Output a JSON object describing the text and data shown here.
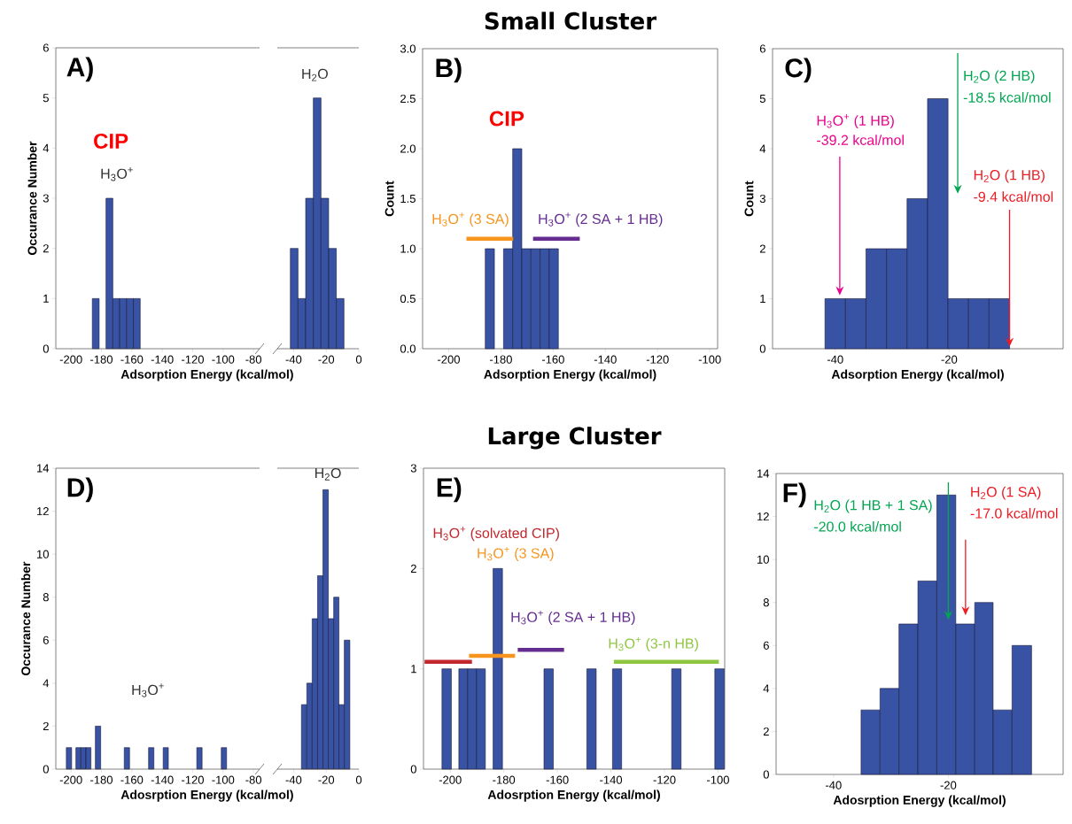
{
  "chart_data": [
    {
      "type": "histogram",
      "ylabel": "Occurance Number",
      "xlabel": "Adsorption Energy (kcal/mol)",
      "color": "#3953a4",
      "bins": [
        -186,
        -181.5,
        -177,
        -172.5,
        -168,
        -163.5,
        -159,
        -154.5
      ],
      "values": [
        1,
        0,
        3,
        1,
        1,
        1,
        1
      ],
      "xlim": [
        -210,
        -76
      ],
      "ylim": [
        0,
        6
      ],
      "xticks": [
        -200,
        -180,
        -160,
        -140,
        -120,
        -100,
        -80
      ],
      "yticks": [
        0,
        1,
        2,
        3,
        4,
        5,
        6
      ],
      "annotations": [
        "A)",
        "CIP",
        "H$_{3}$O$^{+}$"
      ]
    },
    {
      "type": "histogram",
      "color": "#3953a4",
      "tick_labels": "x",
      "bins": [
        -42,
        -37.3,
        -32.6,
        -27.9,
        -23.2,
        -18.5,
        -13.8,
        -9.1
      ],
      "values": [
        2,
        1,
        3,
        5,
        3,
        2,
        1
      ],
      "xlim": [
        -50,
        0
      ],
      "ylim": [
        0,
        6
      ],
      "xticks": [
        -40,
        -20,
        0
      ],
      "annotations": [
        "H$_{2}$O"
      ]
    },
    {
      "type": "histogram",
      "title": "Small Cluster",
      "ylabel": "Count",
      "xlabel": "Adsorption Energy (kcal/mol)",
      "color": "#3953a4",
      "bins": [
        -186,
        -182.5,
        -179,
        -175.5,
        -172,
        -168.5,
        -165,
        -161.5,
        -158
      ],
      "values": [
        1,
        0,
        1,
        2,
        1,
        1,
        1,
        1
      ],
      "xlim": [
        -210,
        -97
      ],
      "ylim": [
        0,
        3
      ],
      "xticks": [
        -200,
        -180,
        -160,
        -140,
        -120,
        -100
      ],
      "yticks": [
        {
          "value": 0,
          "label": "0.0"
        },
        0.5,
        {
          "value": 1,
          "label": "1.0"
        },
        1.5,
        {
          "value": 2,
          "label": "2.0"
        },
        2.5,
        {
          "value": 3,
          "label": "3.0"
        }
      ],
      "series": [
        {
          "type": "line",
          "name": "H$_{3}$O$^{+}$ (3 SA)",
          "color": "#f7941d",
          "x": [
            -193.2,
            -175.3
          ],
          "values": [
            1.1,
            1.1
          ]
        },
        {
          "type": "line",
          "name": "H$_{3}$O$^{+}$ (2 SA + 1 HB)",
          "color": "#662d91",
          "x": [
            -167.7,
            -149.8
          ],
          "values": [
            1.1,
            1.1
          ]
        }
      ],
      "annotations": [
        "B)",
        "CIP"
      ]
    },
    {
      "type": "histogram",
      "ylabel": "Count",
      "xlabel": "Adsorption Energy (kcal/mol)",
      "color": "#3953a4",
      "bins": [
        -41.8,
        -38.2,
        -34.6,
        -31,
        -27.4,
        -23.8,
        -20.2,
        -16.6,
        -13,
        -9.4
      ],
      "values": [
        1,
        1,
        2,
        2,
        3,
        5,
        1,
        1,
        1
      ],
      "xlim": [
        -51,
        0
      ],
      "ylim": [
        0,
        6
      ],
      "xticks": [
        -40,
        -20
      ],
      "yticks": [
        0,
        1,
        2,
        3,
        4,
        5,
        6
      ],
      "annotations": [
        "C)",
        "H$_{3}$O$^{+}$ (1 HB)",
        "H$_{2}$O (2 HB)",
        "H$_{2}$O (1 HB)"
      ],
      "ref_lines": [
        {
          "axis": "x",
          "value": -39.2,
          "label": "-39.2 kcal/mol",
          "color": "#ec008c"
        },
        {
          "axis": "x",
          "value": -18.5,
          "label": "-18.5 kcal/mol",
          "color": "#00a651"
        },
        {
          "axis": "x",
          "value": -9.4,
          "label": "-9.4 kcal/mol",
          "color": "#ed1c24"
        }
      ]
    },
    {
      "type": "histogram",
      "ylabel": "Occurance Number",
      "xlabel": "Adosrption Energy (kcal/mol)",
      "color": "#3953a4",
      "bins": [
        -203.1,
        -199.6,
        -196.8,
        -193.5,
        -190.2,
        -186.9,
        -184,
        -180.5,
        -165,
        -161.5,
        -149,
        -145.5,
        -139.4,
        -136,
        -117.3,
        -113.8,
        -101.2,
        -97.7
      ],
      "values": [
        1,
        0,
        1,
        1,
        1,
        0,
        2,
        0,
        1,
        0,
        1,
        0,
        1,
        0,
        1,
        0,
        1
      ],
      "xlim": [
        -210,
        -76
      ],
      "ylim": [
        0,
        14
      ],
      "xticks": [
        -200,
        -180,
        -160,
        -140,
        -120,
        -100,
        -80
      ],
      "yticks": [
        0,
        2,
        4,
        6,
        8,
        10,
        12,
        14
      ],
      "annotations": [
        "D)",
        "H$_{3}$O$^{+}$"
      ]
    },
    {
      "type": "histogram",
      "color": "#3953a4",
      "tick_labels": "x",
      "bins": [
        -35.2,
        -31.9,
        -28.6,
        -25.3,
        -22,
        -18.7,
        -15.4,
        -12.2,
        -8.9,
        -5.5
      ],
      "values": [
        3,
        4,
        7,
        9,
        13,
        7,
        8,
        3,
        6
      ],
      "xlim": [
        -50,
        0
      ],
      "ylim": [
        0,
        14
      ],
      "xticks": [
        -40,
        -20,
        0
      ],
      "annotations": [
        "H$_{2}$O"
      ]
    },
    {
      "type": "histogram",
      "title": "Large Cluster",
      "xlabel": "Adosrption Energy (kcal/mol)",
      "color": "#3953a4",
      "bins": [
        -203.1,
        -199.6,
        -196.8,
        -193.5,
        -190.2,
        -186.9,
        -184,
        -180.5,
        -165,
        -161.5,
        -149,
        -145.5,
        -139.4,
        -136,
        -117.3,
        -113.8,
        -101.2,
        -97.7
      ],
      "values": [
        1,
        0,
        1,
        1,
        1,
        0,
        2,
        0,
        1,
        0,
        1,
        0,
        1,
        0,
        1,
        0,
        1
      ],
      "xlim": [
        -210,
        -97.5
      ],
      "ylim": [
        0,
        3
      ],
      "xticks": [
        -200,
        -180,
        -160,
        -140,
        -120,
        -100
      ],
      "yticks": [
        0,
        1,
        2,
        3
      ],
      "series": [
        {
          "type": "line",
          "name": "H$_{3}$O$^{+}$ (solvated CIP)",
          "color": "#c1272d",
          "x": [
            -209.6,
            -191.9
          ],
          "values": [
            1.07,
            1.07
          ]
        },
        {
          "type": "line",
          "name": "H$_{3}$O$^{+}$ (3 SA)",
          "color": "#f7941d",
          "x": [
            -193,
            -175.8
          ],
          "values": [
            1.13,
            1.13
          ]
        },
        {
          "type": "line",
          "name": "H$_{3}$O$^{+}$ (2 SA + 1 HB)",
          "color": "#662d91",
          "x": [
            -174.8,
            -157.5
          ],
          "values": [
            1.19,
            1.19
          ]
        },
        {
          "type": "line",
          "name": "H$_{3}$O$^{+}$ (3-n HB)",
          "color": "#8dc63f",
          "x": [
            -138.9,
            -99.7
          ],
          "values": [
            1.07,
            1.07
          ]
        }
      ],
      "annotations": [
        "E)"
      ]
    },
    {
      "type": "histogram",
      "xlabel": "Adosrption Energy (kcal/mol)",
      "color": "#3953a4",
      "bins": [
        -35.2,
        -31.9,
        -28.6,
        -25.3,
        -22,
        -18.7,
        -15.4,
        -12.2,
        -8.9,
        -5.5
      ],
      "values": [
        3,
        4,
        7,
        9,
        13,
        7,
        8,
        3,
        6
      ],
      "xlim": [
        -50,
        0
      ],
      "ylim": [
        0,
        14
      ],
      "xticks": [
        -40,
        -20
      ],
      "yticks": [
        0,
        2,
        4,
        6,
        8,
        10,
        12,
        14
      ],
      "annotations": [
        "F)",
        "H$_{2}$O (1 HB + 1 SA)",
        "H$_{2}$O (1 SA)"
      ],
      "ref_lines": [
        {
          "axis": "x",
          "value": -20,
          "label": "-20.0 kcal/mol",
          "color": "#00a651"
        },
        {
          "axis": "x",
          "value": -17,
          "label": "-17.0 kcal/mol",
          "color": "#ed1c24"
        }
      ]
    }
  ]
}
